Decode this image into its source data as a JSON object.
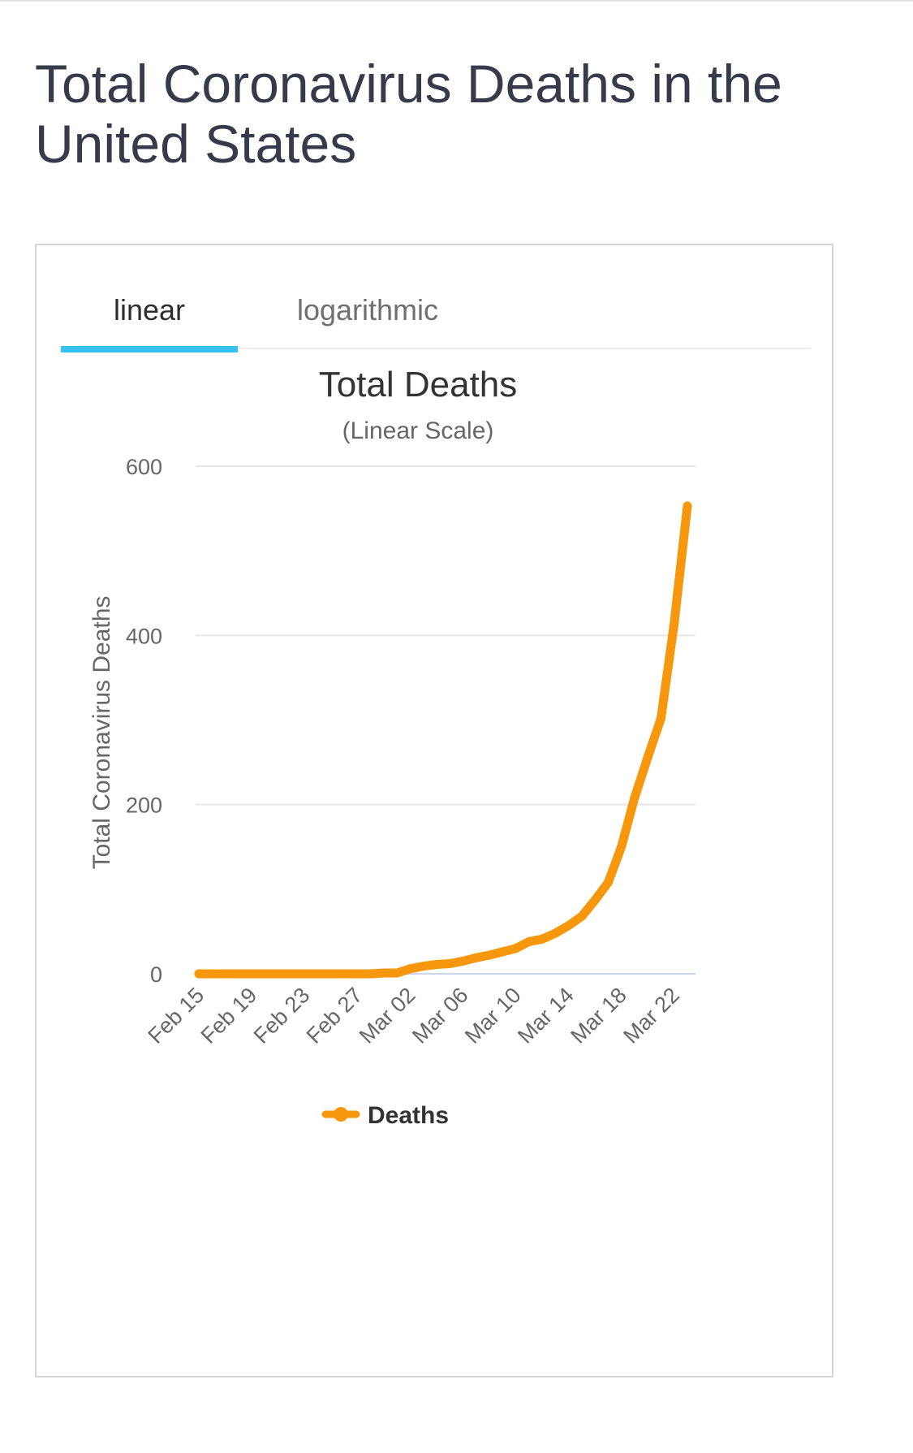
{
  "page": {
    "title": "Total Coronavirus Deaths in the United States"
  },
  "tabs": [
    {
      "label": "linear",
      "active": true
    },
    {
      "label": "logarithmic",
      "active": false
    }
  ],
  "colors": {
    "series": "#f7970d",
    "tab_indicator": "#36c1ee",
    "grid": "#e6e6e6",
    "baseline": "#ccd6eb"
  },
  "chart_data": {
    "type": "line",
    "title": "Total Deaths",
    "subtitle": "(Linear Scale)",
    "xlabel": "",
    "ylabel": "Total Coronavirus Deaths",
    "ylim": [
      0,
      600
    ],
    "yticks": [
      0,
      200,
      400,
      600
    ],
    "grid": true,
    "legend": "bottom-center",
    "x": [
      "Feb 15",
      "Feb 16",
      "Feb 17",
      "Feb 18",
      "Feb 19",
      "Feb 20",
      "Feb 21",
      "Feb 22",
      "Feb 23",
      "Feb 24",
      "Feb 25",
      "Feb 26",
      "Feb 27",
      "Feb 28",
      "Feb 29",
      "Mar 01",
      "Mar 02",
      "Mar 03",
      "Mar 04",
      "Mar 05",
      "Mar 06",
      "Mar 07",
      "Mar 08",
      "Mar 09",
      "Mar 10",
      "Mar 11",
      "Mar 12",
      "Mar 13",
      "Mar 14",
      "Mar 15",
      "Mar 16",
      "Mar 17",
      "Mar 18",
      "Mar 19",
      "Mar 20",
      "Mar 21",
      "Mar 22",
      "Mar 23"
    ],
    "x_tick_labels": [
      "Feb 15",
      "Feb 19",
      "Feb 23",
      "Feb 27",
      "Mar 02",
      "Mar 06",
      "Mar 10",
      "Mar 14",
      "Mar 18",
      "Mar 22"
    ],
    "series": [
      {
        "name": "Deaths",
        "values": [
          0,
          0,
          0,
          0,
          0,
          0,
          0,
          0,
          0,
          0,
          0,
          0,
          0,
          0,
          1,
          1,
          6,
          9,
          11,
          12,
          15,
          19,
          22,
          26,
          30,
          38,
          41,
          48,
          57,
          68,
          87,
          108,
          150,
          208,
          256,
          302,
          414,
          553
        ]
      }
    ]
  }
}
